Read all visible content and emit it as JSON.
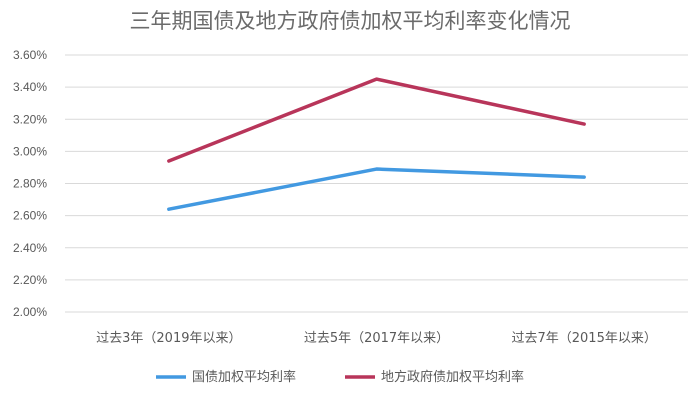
{
  "chart_data": {
    "type": "line",
    "title": "三年期国债及地方政府债加权平均利率变化情况",
    "categories": [
      "过去3年（2019年以来）",
      "过去5年（2017年以来）",
      "过去7年（2015年以来）"
    ],
    "ylim": [
      0.02,
      0.036
    ],
    "yticks": [
      "2.00%",
      "2.20%",
      "2.40%",
      "2.60%",
      "2.80%",
      "3.00%",
      "3.20%",
      "3.40%",
      "3.60%"
    ],
    "grid": true,
    "legend": "bottom",
    "series": [
      {
        "name": "国债加权平均利率",
        "color": "#4299e1",
        "values": [
          0.0264,
          0.0289,
          0.0284
        ]
      },
      {
        "name": "地方政府债加权平均利率",
        "color": "#b8355a",
        "values": [
          0.0294,
          0.0345,
          0.0317
        ]
      }
    ]
  }
}
